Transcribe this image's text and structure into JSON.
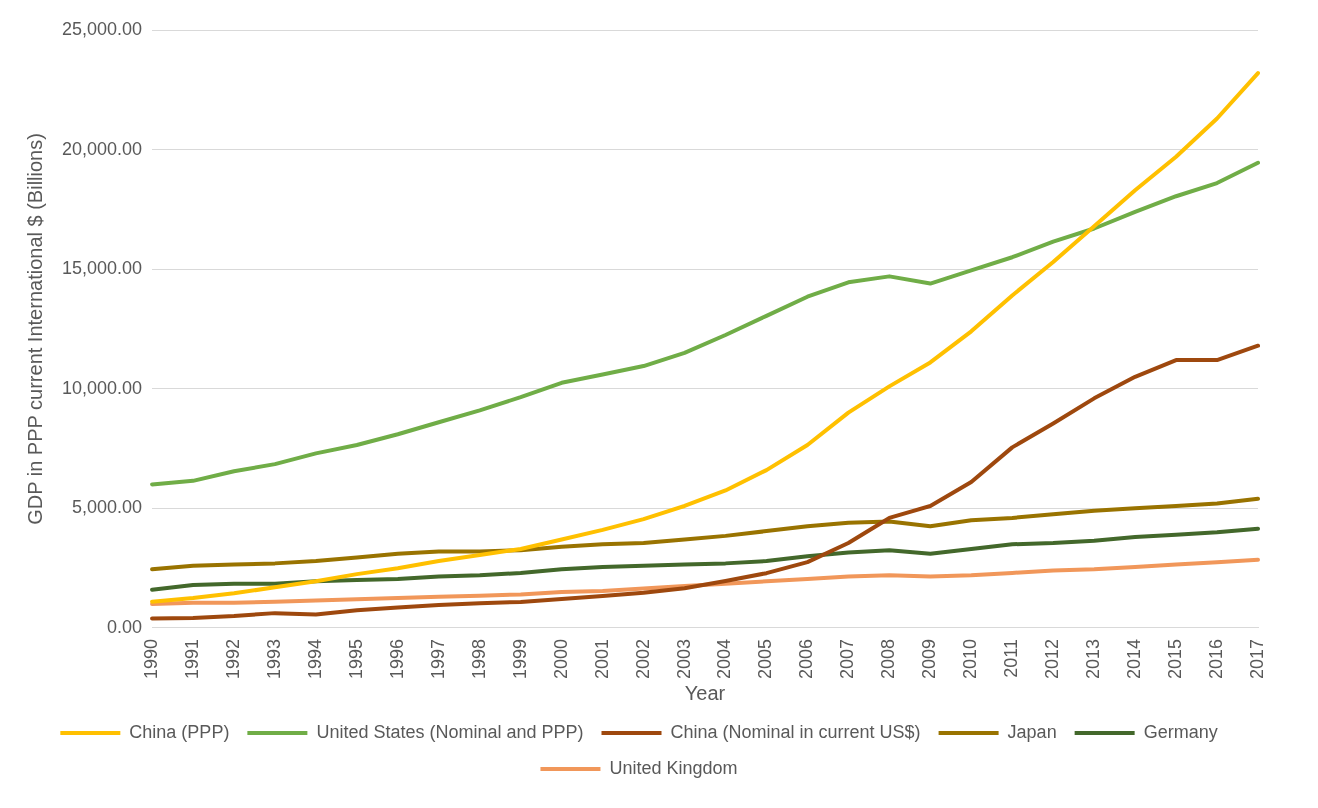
{
  "chart_data": {
    "type": "line",
    "xlabel": "Year",
    "ylabel": "GDP in PPP current International $ (Billions)",
    "categories": [
      "1990",
      "1991",
      "1992",
      "1993",
      "1994",
      "1995",
      "1996",
      "1997",
      "1998",
      "1999",
      "2000",
      "2001",
      "2002",
      "2003",
      "2004",
      "2005",
      "2006",
      "2007",
      "2008",
      "2009",
      "2010",
      "2011",
      "2012",
      "2013",
      "2014",
      "2015",
      "2016",
      "2017"
    ],
    "ylim": [
      0,
      25000
    ],
    "yticks": [
      {
        "value": 0,
        "label": "0.00"
      },
      {
        "value": 5000,
        "label": "5,000.00"
      },
      {
        "value": 10000,
        "label": "10,000.00"
      },
      {
        "value": 15000,
        "label": "15,000.00"
      },
      {
        "value": 20000,
        "label": "20,000.00"
      },
      {
        "value": 25000,
        "label": "25,000.00"
      }
    ],
    "grid": "y",
    "legend": "bottom",
    "marker": "none",
    "line_style": "solid",
    "series": [
      {
        "name": "China (PPP)",
        "color": "#ffc000",
        "values": [
          1100,
          1250,
          1450,
          1700,
          1950,
          2250,
          2500,
          2800,
          3050,
          3300,
          3700,
          4100,
          4550,
          5100,
          5750,
          6600,
          7650,
          9000,
          10100,
          11100,
          12400,
          13900,
          15300,
          16800,
          18300,
          19700,
          21300,
          23200
        ]
      },
      {
        "name": "United States (Nominal and PPP)",
        "color": "#70ad47",
        "values": [
          6000,
          6150,
          6550,
          6850,
          7300,
          7650,
          8100,
          8600,
          9100,
          9650,
          10250,
          10600,
          10950,
          11500,
          12250,
          13050,
          13850,
          14450,
          14700,
          14400,
          14950,
          15500,
          16150,
          16700,
          17400,
          18050,
          18600,
          19450
        ]
      },
      {
        "name": "China (Nominal in current US$)",
        "color": "#9e480e",
        "values": [
          400,
          420,
          500,
          620,
          560,
          740,
          860,
          960,
          1030,
          1090,
          1210,
          1340,
          1470,
          1660,
          1960,
          2290,
          2750,
          3550,
          4600,
          5100,
          6100,
          7550,
          8550,
          9600,
          10500,
          11200,
          11200,
          11800
        ]
      },
      {
        "name": "Japan",
        "color": "#997300",
        "values": [
          2450,
          2600,
          2650,
          2700,
          2800,
          2950,
          3100,
          3200,
          3200,
          3250,
          3400,
          3500,
          3550,
          3700,
          3850,
          4050,
          4250,
          4400,
          4450,
          4250,
          4500,
          4600,
          4750,
          4900,
          5000,
          5100,
          5200,
          5400
        ]
      },
      {
        "name": "Germany",
        "color": "#43682b",
        "values": [
          1600,
          1800,
          1850,
          1850,
          1950,
          2000,
          2050,
          2150,
          2200,
          2300,
          2450,
          2550,
          2600,
          2650,
          2700,
          2800,
          3000,
          3150,
          3250,
          3100,
          3300,
          3500,
          3550,
          3650,
          3800,
          3900,
          4000,
          4150
        ]
      },
      {
        "name": "United Kingdom",
        "color": "#f1975a",
        "values": [
          1000,
          1050,
          1050,
          1100,
          1150,
          1200,
          1250,
          1300,
          1350,
          1400,
          1500,
          1550,
          1650,
          1750,
          1850,
          1950,
          2050,
          2150,
          2200,
          2150,
          2200,
          2300,
          2400,
          2450,
          2550,
          2650,
          2750,
          2850
        ]
      }
    ]
  }
}
